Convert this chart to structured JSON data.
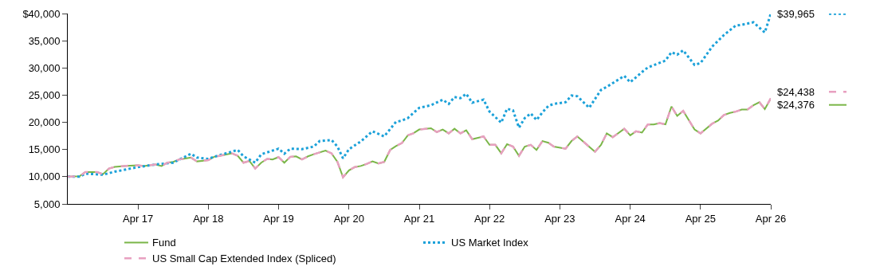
{
  "chart_data": {
    "type": "line",
    "ylim": [
      5000,
      40000
    ],
    "yticks": [
      {
        "value": 5000,
        "label": "5,000"
      },
      {
        "value": 10000,
        "label": "10,000"
      },
      {
        "value": 15000,
        "label": "15,000"
      },
      {
        "value": 20000,
        "label": "20,000"
      },
      {
        "value": 25000,
        "label": "25,000"
      },
      {
        "value": 30000,
        "label": "30,000"
      },
      {
        "value": 35000,
        "label": "35,000"
      },
      {
        "value": 40000,
        "label": "$40,000"
      }
    ],
    "xlim": [
      "2016-04",
      "2026-04"
    ],
    "xticks": [
      {
        "value": "2017-04",
        "label": "Apr 17"
      },
      {
        "value": "2018-04",
        "label": "Apr 18"
      },
      {
        "value": "2019-04",
        "label": "Apr 19"
      },
      {
        "value": "2020-04",
        "label": "Apr 20"
      },
      {
        "value": "2021-04",
        "label": "Apr 21"
      },
      {
        "value": "2022-04",
        "label": "Apr 22"
      },
      {
        "value": "2023-04",
        "label": "Apr 23"
      },
      {
        "value": "2024-04",
        "label": "Apr 24"
      },
      {
        "value": "2025-04",
        "label": "Apr 25"
      },
      {
        "value": "2026-04",
        "label": "Apr 26"
      }
    ],
    "legend": "bottom",
    "marker": "none",
    "series": [
      {
        "name": "Fund",
        "color": "#7ab648",
        "line_style": "solid",
        "x": [
          "2016-04",
          "2016-06",
          "2016-07",
          "2016-09",
          "2016-10",
          "2016-11",
          "2016-12",
          "2017-02",
          "2017-04",
          "2017-05",
          "2017-07",
          "2017-08",
          "2017-09",
          "2017-10",
          "2017-11",
          "2018-01",
          "2018-02",
          "2018-04",
          "2018-05",
          "2018-06",
          "2018-08",
          "2018-09",
          "2018-10",
          "2018-11",
          "2018-12",
          "2019-01",
          "2019-02",
          "2019-03",
          "2019-04",
          "2019-05",
          "2019-06",
          "2019-07",
          "2019-08",
          "2019-09",
          "2019-10",
          "2019-12",
          "2020-01",
          "2020-02",
          "2020-03",
          "2020-04",
          "2020-05",
          "2020-06",
          "2020-07",
          "2020-08",
          "2020-09",
          "2020-10",
          "2020-11",
          "2020-12",
          "2021-01",
          "2021-02",
          "2021-03",
          "2021-04",
          "2021-06",
          "2021-07",
          "2021-08",
          "2021-09",
          "2021-10",
          "2021-11",
          "2021-12",
          "2022-01",
          "2022-03",
          "2022-04",
          "2022-05",
          "2022-06",
          "2022-07",
          "2022-08",
          "2022-09",
          "2022-10",
          "2022-11",
          "2022-12",
          "2023-01",
          "2023-02",
          "2023-03",
          "2023-05",
          "2023-06",
          "2023-07",
          "2023-10",
          "2023-11",
          "2023-12",
          "2024-01",
          "2024-03",
          "2024-04",
          "2024-05",
          "2024-06",
          "2024-07",
          "2024-08",
          "2024-09",
          "2024-10",
          "2024-11",
          "2024-12",
          "2025-01",
          "2025-03",
          "2025-04",
          "2025-06",
          "2025-07",
          "2025-08",
          "2025-09",
          "2025-10",
          "2025-11",
          "2025-12",
          "2026-01",
          "2026-02",
          "2026-03",
          "2026-04"
        ],
        "values": [
          10000,
          10080,
          10850,
          10850,
          10460,
          11500,
          11800,
          12000,
          12100,
          11970,
          12250,
          11970,
          12580,
          12720,
          13180,
          13520,
          12820,
          13040,
          13660,
          13850,
          14310,
          13850,
          12580,
          12900,
          11500,
          12580,
          13280,
          13180,
          13600,
          12580,
          13660,
          13750,
          13180,
          13750,
          14130,
          14790,
          14310,
          12720,
          9900,
          11170,
          11770,
          11970,
          12340,
          12820,
          12440,
          12720,
          14930,
          15630,
          16200,
          17610,
          17970,
          18680,
          18920,
          18210,
          18680,
          17970,
          18820,
          17970,
          18540,
          16900,
          17410,
          15860,
          15860,
          14310,
          16000,
          15540,
          13850,
          15540,
          15860,
          14930,
          16560,
          16240,
          15540,
          15150,
          16560,
          17410,
          14590,
          15860,
          17970,
          17270,
          18820,
          17610,
          18350,
          18110,
          19620,
          19620,
          19860,
          19620,
          22900,
          21170,
          22110,
          18690,
          17970,
          19760,
          20320,
          21350,
          21730,
          21970,
          22340,
          22340,
          23140,
          23700,
          22430,
          24376
        ]
      },
      {
        "name": "US Market Index",
        "color": "#1ba1d9",
        "line_style": "dotted",
        "x": [
          "2016-04",
          "2016-06",
          "2016-07",
          "2016-10",
          "2016-12",
          "2017-04",
          "2017-07",
          "2017-10",
          "2018-01",
          "2018-02",
          "2018-04",
          "2018-05",
          "2018-09",
          "2018-10",
          "2018-12",
          "2019-01",
          "2019-04",
          "2019-05",
          "2019-06",
          "2019-08",
          "2019-10",
          "2019-11",
          "2020-01",
          "2020-02",
          "2020-03",
          "2020-04",
          "2020-06",
          "2020-08",
          "2020-10",
          "2020-12",
          "2021-01",
          "2021-02",
          "2021-04",
          "2021-06",
          "2021-08",
          "2021-09",
          "2021-10",
          "2021-11",
          "2021-12",
          "2022-01",
          "2022-03",
          "2022-04",
          "2022-06",
          "2022-07",
          "2022-08",
          "2022-09",
          "2022-10",
          "2022-11",
          "2022-12",
          "2023-01",
          "2023-02",
          "2023-03",
          "2023-05",
          "2023-06",
          "2023-07",
          "2023-09",
          "2023-11",
          "2023-12",
          "2024-03",
          "2024-04",
          "2024-06",
          "2024-07",
          "2024-10",
          "2024-11",
          "2024-12",
          "2025-01",
          "2025-03",
          "2025-04",
          "2025-06",
          "2025-08",
          "2025-10",
          "2025-11",
          "2026-01",
          "2026-03",
          "2026-04"
        ],
        "values": [
          10000,
          10000,
          10560,
          10370,
          10930,
          11770,
          12250,
          12580,
          14230,
          13520,
          13280,
          13660,
          14930,
          13750,
          12580,
          14130,
          15150,
          14230,
          15150,
          15070,
          15540,
          16560,
          16760,
          15540,
          13380,
          15070,
          16480,
          18350,
          17410,
          20080,
          20320,
          20790,
          22670,
          23140,
          24170,
          23380,
          24650,
          24450,
          25250,
          23610,
          24170,
          21970,
          19940,
          22500,
          22200,
          19010,
          20790,
          21630,
          20420,
          21830,
          23040,
          23380,
          23700,
          24930,
          24790,
          22670,
          25960,
          26520,
          28530,
          27370,
          29240,
          30080,
          31350,
          32900,
          32440,
          33240,
          30560,
          30890,
          33940,
          36060,
          37790,
          37930,
          38390,
          36520,
          39965
        ]
      },
      {
        "name": "US Small Cap Extended Index (Spliced)",
        "color": "#e8a0c0",
        "line_style": "dashed",
        "x": [
          "2016-04",
          "2016-06",
          "2016-07",
          "2016-09",
          "2016-10",
          "2016-11",
          "2016-12",
          "2017-02",
          "2017-04",
          "2017-05",
          "2017-07",
          "2017-08",
          "2017-09",
          "2017-10",
          "2017-11",
          "2018-01",
          "2018-02",
          "2018-04",
          "2018-05",
          "2018-06",
          "2018-08",
          "2018-09",
          "2018-10",
          "2018-11",
          "2018-12",
          "2019-01",
          "2019-02",
          "2019-03",
          "2019-04",
          "2019-05",
          "2019-06",
          "2019-07",
          "2019-08",
          "2019-09",
          "2019-10",
          "2019-12",
          "2020-01",
          "2020-02",
          "2020-03",
          "2020-04",
          "2020-05",
          "2020-06",
          "2020-07",
          "2020-08",
          "2020-09",
          "2020-10",
          "2020-11",
          "2020-12",
          "2021-01",
          "2021-02",
          "2021-03",
          "2021-04",
          "2021-06",
          "2021-07",
          "2021-08",
          "2021-09",
          "2021-10",
          "2021-11",
          "2021-12",
          "2022-01",
          "2022-03",
          "2022-04",
          "2022-05",
          "2022-06",
          "2022-07",
          "2022-08",
          "2022-09",
          "2022-10",
          "2022-11",
          "2022-12",
          "2023-01",
          "2023-02",
          "2023-03",
          "2023-05",
          "2023-06",
          "2023-07",
          "2023-10",
          "2023-11",
          "2023-12",
          "2024-01",
          "2024-03",
          "2024-04",
          "2024-05",
          "2024-06",
          "2024-07",
          "2024-08",
          "2024-09",
          "2024-10",
          "2024-11",
          "2024-12",
          "2025-01",
          "2025-03",
          "2025-04",
          "2025-06",
          "2025-07",
          "2025-08",
          "2025-09",
          "2025-10",
          "2025-11",
          "2025-12",
          "2026-01",
          "2026-02",
          "2026-03",
          "2026-04"
        ],
        "values": [
          10000,
          10080,
          10850,
          10850,
          10460,
          11500,
          11800,
          12000,
          12100,
          11970,
          12250,
          11970,
          12580,
          12720,
          13180,
          13520,
          12820,
          13040,
          13660,
          13850,
          14310,
          13850,
          12580,
          12900,
          11500,
          12580,
          13280,
          13180,
          13600,
          12580,
          13660,
          13750,
          13180,
          13750,
          14130,
          14790,
          14310,
          12720,
          9900,
          11170,
          11770,
          11970,
          12340,
          12820,
          12440,
          12720,
          14930,
          15630,
          16200,
          17610,
          17970,
          18680,
          18920,
          18210,
          18680,
          17970,
          18820,
          17970,
          18540,
          16900,
          17410,
          15860,
          15860,
          14310,
          16000,
          15540,
          13850,
          15540,
          15860,
          14930,
          16560,
          16240,
          15540,
          15150,
          16560,
          17410,
          14590,
          15860,
          17970,
          17270,
          18820,
          17610,
          18350,
          18110,
          19620,
          19620,
          19860,
          19620,
          22900,
          21170,
          22110,
          18690,
          17970,
          19760,
          20320,
          21350,
          21730,
          21970,
          22340,
          22340,
          23140,
          23700,
          22430,
          24438
        ]
      }
    ],
    "annotations": [
      {
        "text": "$39,965",
        "x": "2026-04",
        "y": 39965
      },
      {
        "text": "$24,438",
        "x": "2026-04",
        "y": 24438
      },
      {
        "text": "$24,376",
        "x": "2026-04",
        "y": 24376
      }
    ]
  }
}
